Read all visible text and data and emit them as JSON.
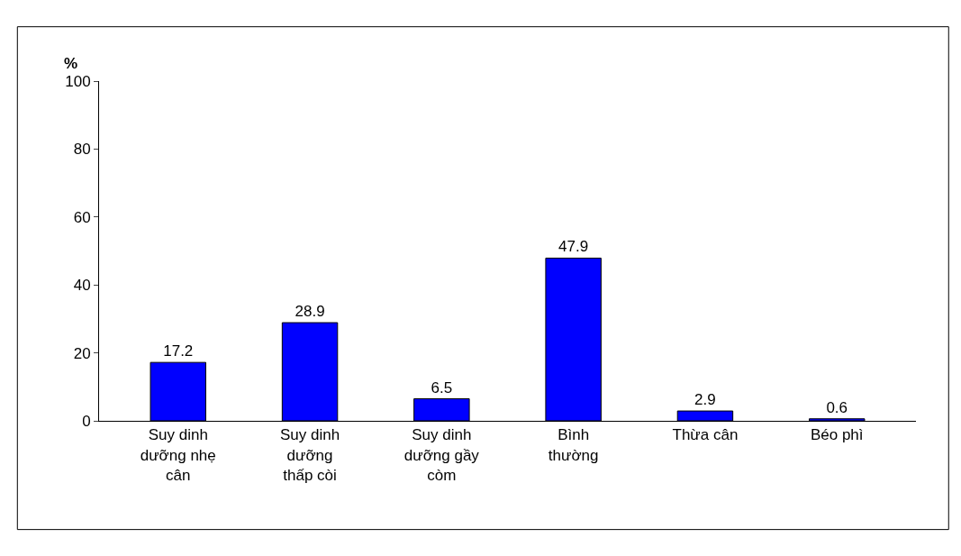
{
  "chart_data": {
    "type": "bar",
    "ylabel": "%",
    "categories": [
      "Suy dinh dưỡng nhẹ cân",
      "Suy dinh dưỡng thấp còi",
      "Suy dinh dưỡng gầy còm",
      "Bình thường",
      "Thừa cân",
      "Béo phì"
    ],
    "values": [
      17.2,
      28.9,
      6.5,
      47.9,
      2.9,
      0.6
    ],
    "color": "#0000ff",
    "ylim": [
      0,
      100
    ],
    "yticks": [
      0,
      20,
      40,
      60,
      80,
      100
    ],
    "data_labels": true
  }
}
